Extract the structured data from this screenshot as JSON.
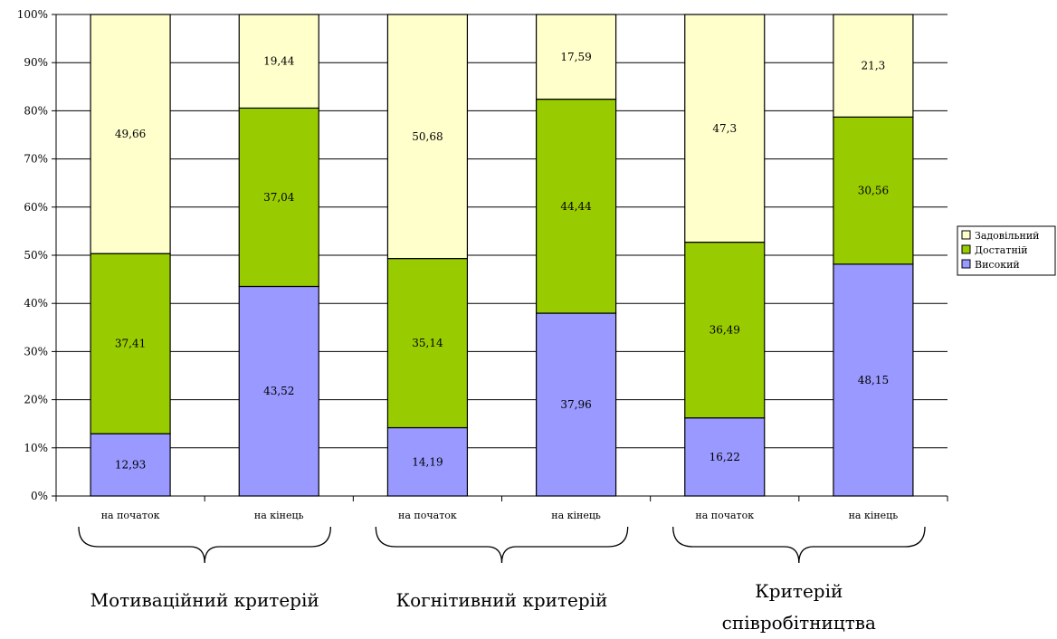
{
  "chart_data": {
    "type": "bar",
    "stacked": true,
    "percent_stacked": true,
    "categories": [
      "на початок",
      "на кінець",
      "на початок",
      "на кінець",
      "на початок",
      "на кінець"
    ],
    "groups": [
      {
        "label": "Мотиваційний критерій",
        "categories": [
          0,
          1
        ]
      },
      {
        "label": "Когнітивний критерій",
        "categories": [
          2,
          3
        ]
      },
      {
        "label_lines": [
          "Критерій",
          "співробітництва"
        ],
        "categories": [
          4,
          5
        ]
      }
    ],
    "series": [
      {
        "name": "Високий",
        "color": "#9999ff",
        "values": [
          12.93,
          43.52,
          14.19,
          37.96,
          16.22,
          48.15
        ],
        "labels": [
          "12,93",
          "43,52",
          "14,19",
          "37,96",
          "16,22",
          "48,15"
        ]
      },
      {
        "name": "Достатній",
        "color": "#99cc00",
        "values": [
          37.41,
          37.04,
          35.14,
          44.44,
          36.49,
          30.56
        ],
        "labels": [
          "37,41",
          "37,04",
          "35,14",
          "44,44",
          "36,49",
          "30,56"
        ]
      },
      {
        "name": "Задовільний",
        "color": "#ffffcc",
        "values": [
          49.66,
          19.44,
          50.68,
          17.59,
          47.3,
          21.3
        ],
        "labels": [
          "49,66",
          "19,44",
          "50,68",
          "17,59",
          "47,3",
          "21,3"
        ]
      }
    ],
    "legend_order": [
      2,
      1,
      0
    ],
    "yticks": [
      "0%",
      "10%",
      "20%",
      "30%",
      "40%",
      "50%",
      "60%",
      "70%",
      "80%",
      "90%",
      "100%"
    ],
    "ylim": [
      0,
      100
    ],
    "grid": true,
    "legend_position": "right",
    "title": "",
    "xlabel": "",
    "ylabel": ""
  }
}
